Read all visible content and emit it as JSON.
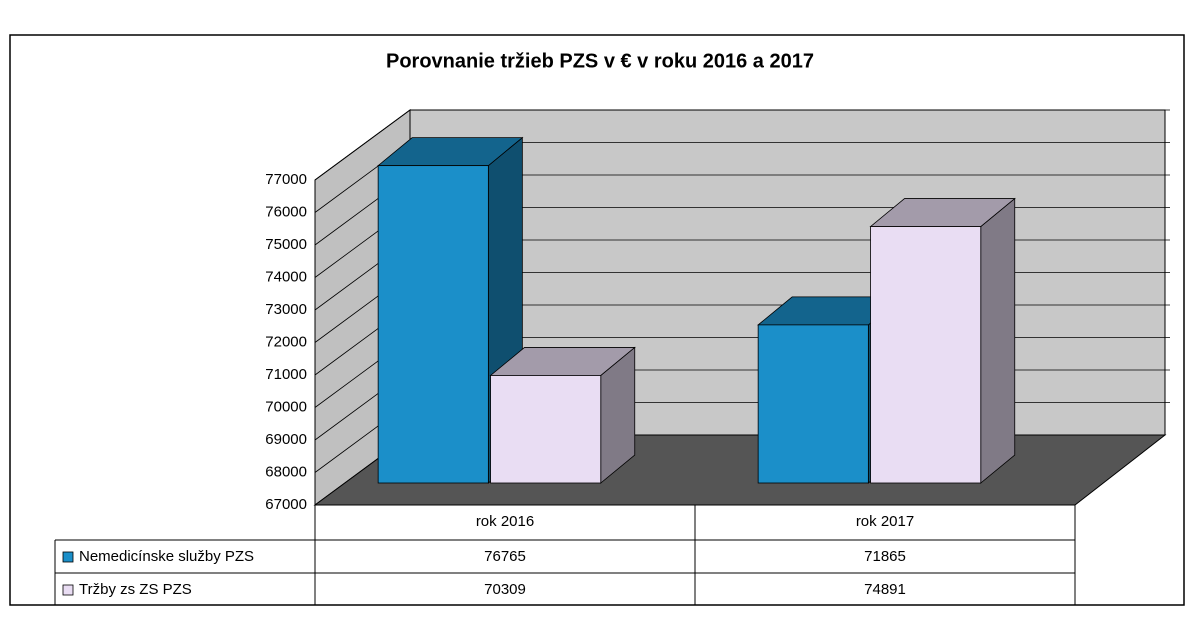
{
  "chart_data": {
    "type": "bar3d",
    "title": "Porovnanie tržieb PZS v € v roku 2016 a 2017",
    "categories": [
      "rok 2016",
      "rok 2017"
    ],
    "series": [
      {
        "name": "Nemedicínske služby PZS",
        "color": "#1b8fc9",
        "values": [
          76765,
          71865
        ]
      },
      {
        "name": "Tržby zs ZS PZS",
        "color": "#e9ddf3",
        "values": [
          70309,
          74891
        ]
      }
    ],
    "ylim": [
      67000,
      77000
    ],
    "yticks": [
      67000,
      68000,
      69000,
      70000,
      71000,
      72000,
      73000,
      74000,
      75000,
      76000,
      77000
    ],
    "grid": true
  }
}
